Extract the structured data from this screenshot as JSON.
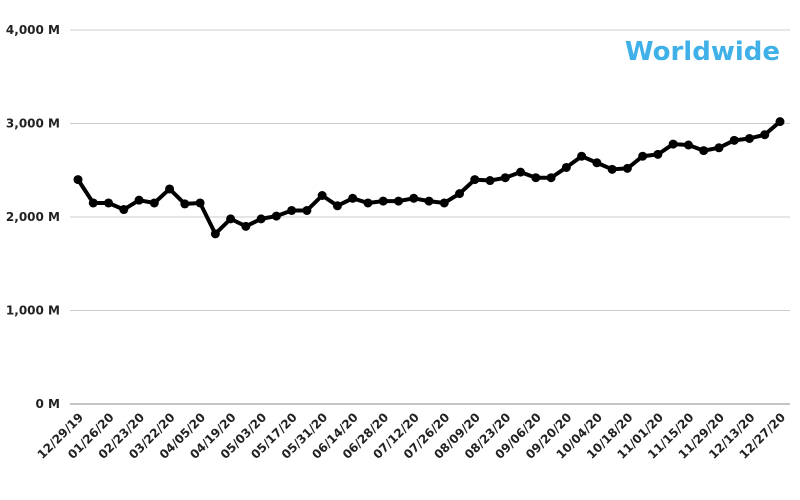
{
  "chart_data": {
    "type": "line",
    "title": "Worldwide",
    "title_color": "#3fb0e8",
    "categories": [
      "12/29/19",
      null,
      "01/26/20",
      null,
      "02/23/20",
      null,
      "03/22/20",
      null,
      "04/05/20",
      null,
      "04/19/20",
      null,
      "05/03/20",
      null,
      "05/17/20",
      null,
      "05/31/20",
      null,
      "06/14/20",
      null,
      "06/28/20",
      null,
      "07/12/20",
      null,
      "07/26/20",
      null,
      "08/09/20",
      null,
      "08/23/20",
      null,
      "09/06/20",
      null,
      "09/20/20",
      null,
      "10/04/20",
      null,
      "10/18/20",
      null,
      "11/01/20",
      null,
      "11/15/20",
      null,
      "11/29/20",
      null,
      "12/13/20",
      null,
      "12/27/20"
    ],
    "series": [
      {
        "name": "Worldwide",
        "color": "#000000",
        "values": [
          2400,
          2150,
          2150,
          2080,
          2180,
          2150,
          2300,
          2140,
          2150,
          1820,
          1980,
          1900,
          1980,
          2010,
          2070,
          2070,
          2230,
          2120,
          2200,
          2150,
          2170,
          2170,
          2200,
          2170,
          2150,
          2250,
          2400,
          2390,
          2420,
          2480,
          2420,
          2420,
          2530,
          2650,
          2580,
          2510,
          2520,
          2650,
          2670,
          2780,
          2770,
          2710,
          2740,
          2820,
          2840,
          2880,
          3020
        ]
      }
    ],
    "ylim": [
      0,
      4000
    ],
    "yticks": [
      {
        "value": 0,
        "label": "0 M"
      },
      {
        "value": 1000,
        "label": "1,000 M"
      },
      {
        "value": 2000,
        "label": "2,000 M"
      },
      {
        "value": 3000,
        "label": "3,000 M"
      },
      {
        "value": 4000,
        "label": "4,000 M"
      }
    ],
    "grid": true
  }
}
